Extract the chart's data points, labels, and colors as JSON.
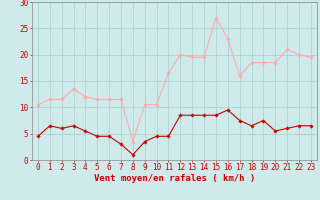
{
  "hours": [
    0,
    1,
    2,
    3,
    4,
    5,
    6,
    7,
    8,
    9,
    10,
    11,
    12,
    13,
    14,
    15,
    16,
    17,
    18,
    19,
    20,
    21,
    22,
    23
  ],
  "wind_avg": [
    4.5,
    6.5,
    6.0,
    6.5,
    5.5,
    4.5,
    4.5,
    3.0,
    1.0,
    3.5,
    4.5,
    4.5,
    8.5,
    8.5,
    8.5,
    8.5,
    9.5,
    7.5,
    6.5,
    7.5,
    5.5,
    6.0,
    6.5,
    6.5
  ],
  "wind_gust": [
    10.5,
    11.5,
    11.5,
    13.5,
    12.0,
    11.5,
    11.5,
    11.5,
    3.5,
    10.5,
    10.5,
    16.5,
    20.0,
    19.5,
    19.5,
    27.0,
    23.0,
    16.0,
    18.5,
    18.5,
    18.5,
    21.0,
    20.0,
    19.5
  ],
  "avg_color": "#cc0000",
  "gust_color": "#ffaaaa",
  "bg_color": "#ceeaea",
  "grid_color": "#aacccc",
  "axis_color": "#cc0000",
  "spine_color": "#888888",
  "xlabel": "Vent moyen/en rafales ( km/h )",
  "ylim": [
    0,
    30
  ],
  "yticks": [
    0,
    5,
    10,
    15,
    20,
    25,
    30
  ],
  "marker": "D",
  "marker_size": 1.8,
  "line_width": 0.8,
  "tick_fontsize": 5.5,
  "xlabel_fontsize": 6.5
}
